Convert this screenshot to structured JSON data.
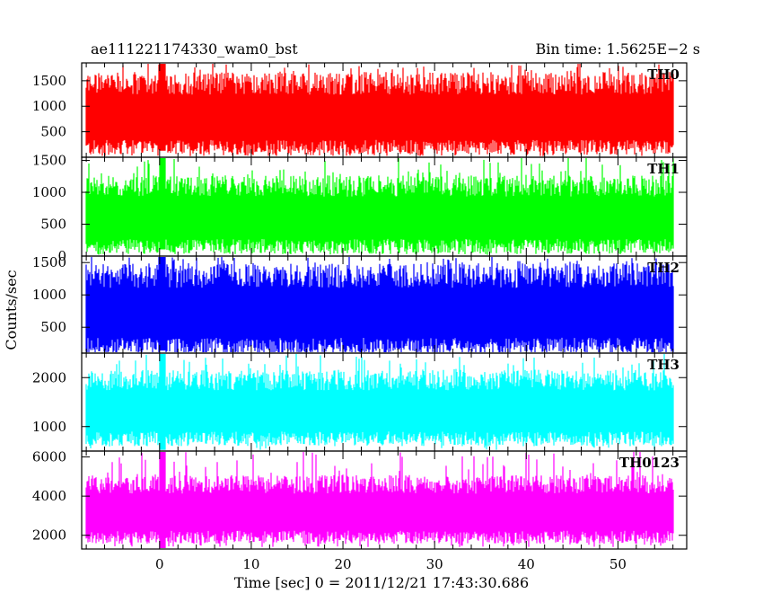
{
  "header": {
    "left_title": "ae111221174330_wam0_bst",
    "right_title": "Bin time: 1.5625E−2 s"
  },
  "chart_data": {
    "type": "line",
    "ylabel": "Counts/sec",
    "xlabel": "Time [sec] 0 = 2011/12/21 17:43:30.686",
    "xlim": [
      -8.5,
      57.5
    ],
    "x_ticks": [
      0,
      10,
      20,
      30,
      40,
      50
    ],
    "x_range_data": [
      -8,
      56
    ],
    "panels": [
      {
        "name": "TH0",
        "color": "#ff0000",
        "ylim": [
          0,
          1850
        ],
        "yticks": [
          500,
          1000,
          1500
        ],
        "band_low": 180,
        "band_high": 1450,
        "spike_high": 1850,
        "spike_low": 60,
        "burst_at": 0.3
      },
      {
        "name": "TH1",
        "color": "#00ff00",
        "ylim": [
          0,
          1550
        ],
        "yticks": [
          0,
          500,
          1000,
          1500
        ],
        "band_low": 150,
        "band_high": 1100,
        "spike_high": 1550,
        "spike_low": 20,
        "burst_at": 0.3
      },
      {
        "name": "TH2",
        "color": "#0000ff",
        "ylim": [
          100,
          1600
        ],
        "yticks": [
          500,
          1000,
          1500
        ],
        "band_low": 200,
        "band_high": 1300,
        "spike_high": 1600,
        "spike_low": 120,
        "burst_at": 0.3
      },
      {
        "name": "TH3",
        "color": "#00ffff",
        "ylim": [
          500,
          2500
        ],
        "yticks": [
          1000,
          2000
        ],
        "band_low": 750,
        "band_high": 1950,
        "spike_high": 2500,
        "spike_low": 520,
        "burst_at": 0.3
      },
      {
        "name": "TH0123",
        "color": "#ff00ff",
        "ylim": [
          1300,
          6300
        ],
        "yticks": [
          2000,
          4000,
          6000
        ],
        "band_low": 1900,
        "band_high": 4600,
        "spike_high": 6300,
        "spike_low": 1400,
        "burst_at": 0.3
      }
    ]
  }
}
